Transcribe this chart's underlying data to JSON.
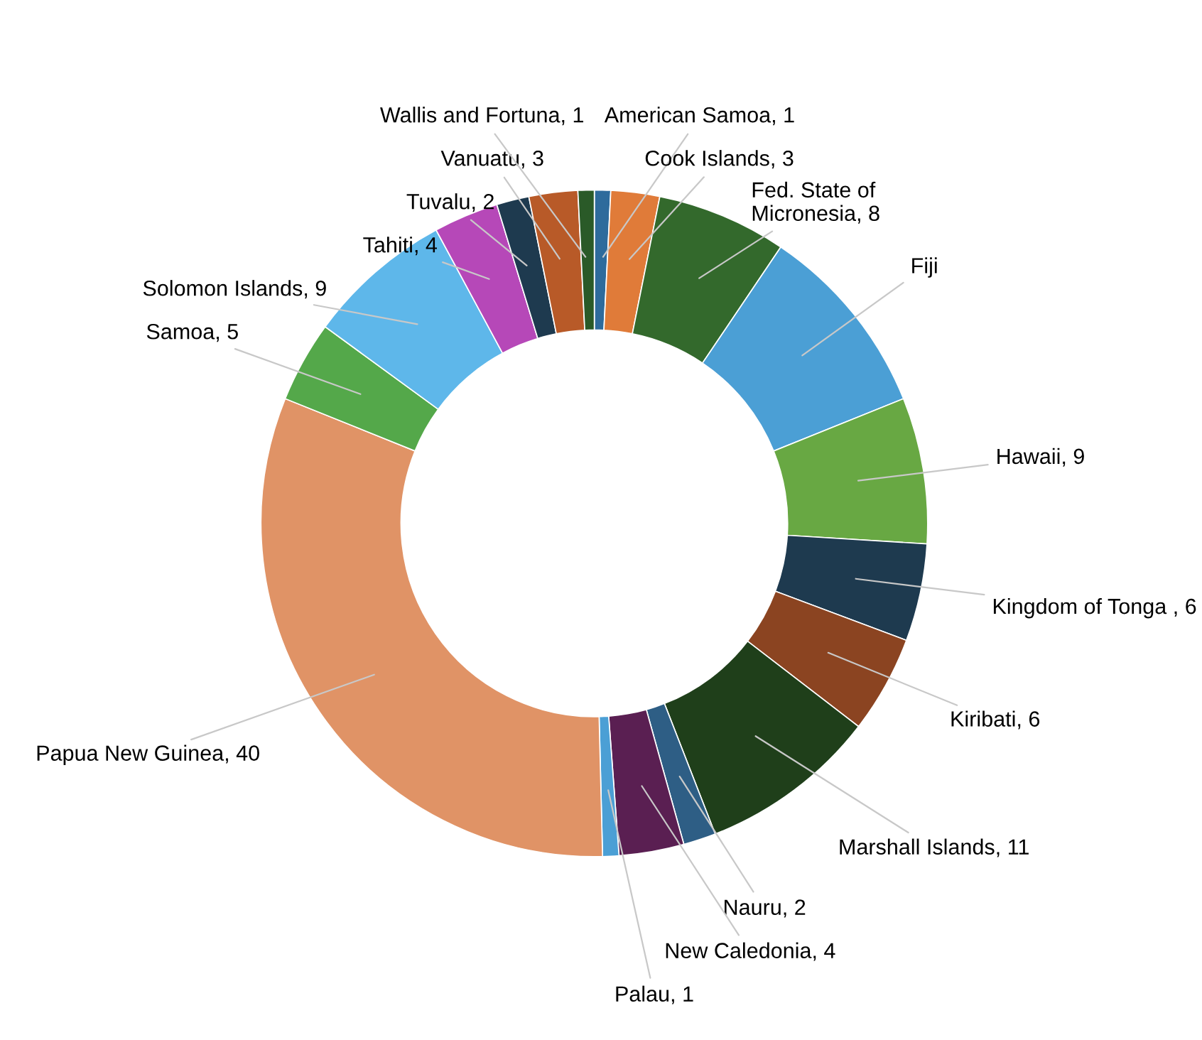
{
  "chart_data": {
    "type": "donut",
    "categories": [
      "American Samoa",
      "Cook Islands",
      "Fed. State of Micronesia",
      "Fiji",
      "Hawaii",
      "Kingdom of Tonga ",
      "Kiribati",
      "Marshall Islands",
      "Nauru",
      "New Caledonia",
      "Palau",
      "Papua New Guinea",
      "Samoa",
      "Solomon Islands",
      "Tahiti",
      "Tuvalu",
      "Vanuatu",
      "Wallis and Fortuna"
    ],
    "values": [
      1,
      3,
      8,
      12,
      9,
      6,
      6,
      11,
      2,
      4,
      1,
      40,
      5,
      9,
      4,
      2,
      3,
      1
    ],
    "value_labels": [
      "1",
      "3",
      "8",
      null,
      "9",
      "6",
      "6",
      "11",
      "2",
      "4",
      "1",
      "40",
      "5",
      "9",
      "4",
      "2",
      "3",
      "1"
    ],
    "colors": [
      "#2e6b9c",
      "#e07b39",
      "#33692c",
      "#4b9fd5",
      "#68a843",
      "#1e3a4f",
      "#8b4421",
      "#1f3f1a",
      "#2e5e85",
      "#5a1f52",
      "#4b9fd5",
      "#e09366",
      "#54a84a",
      "#5eb7ea",
      "#b648b8",
      "#1e3a4f",
      "#b85a28",
      "#2a5a28"
    ],
    "legend": false
  }
}
